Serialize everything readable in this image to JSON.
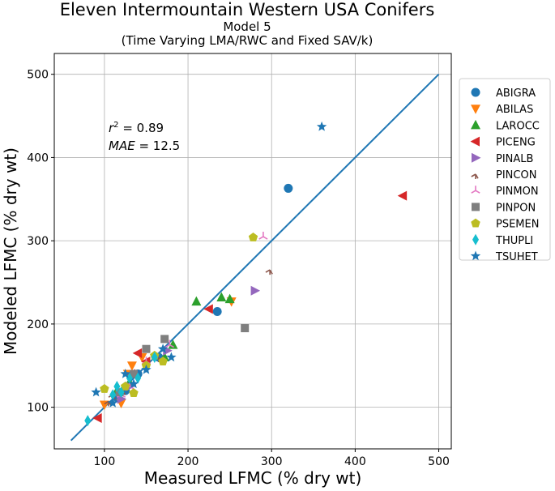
{
  "chart_data": {
    "type": "scatter",
    "title": "Eleven Intermountain Western USA Conifers",
    "subtitle_line1": "Model 5",
    "subtitle_line2": "(Time Varying LMA/RWC and Fixed SAV/k)",
    "xlabel": "Measured LFMC (% dry wt)",
    "ylabel": "Modeled LFMC (% dry wt)",
    "xlim": [
      40,
      515
    ],
    "ylim": [
      50,
      525
    ],
    "xticks": [
      100,
      200,
      300,
      400,
      500
    ],
    "yticks": [
      100,
      200,
      300,
      400,
      500
    ],
    "grid": true,
    "legend_position": "outside-right",
    "stats": {
      "r2_prefix": "r",
      "r2_sup": "2",
      "r2_value": " = 0.89",
      "mae_label": "MAE",
      "mae_value": " = 12.5"
    },
    "one_to_one_line": {
      "x": [
        60,
        500
      ],
      "y": [
        60,
        500
      ],
      "color": "#1f77b4"
    },
    "series": [
      {
        "name": "ABIGRA",
        "marker": "circle",
        "color": "#1f77b4",
        "points": [
          [
            320,
            363
          ],
          [
            235,
            215
          ],
          [
            125,
            120
          ],
          [
            115,
            112
          ],
          [
            140,
            140
          ],
          [
            165,
            160
          ]
        ]
      },
      {
        "name": "ABILAS",
        "marker": "triangle-down",
        "color": "#ff7f0e",
        "points": [
          [
            252,
            227
          ],
          [
            133,
            150
          ],
          [
            120,
            105
          ],
          [
            145,
            160
          ],
          [
            128,
            140
          ],
          [
            100,
            103
          ]
        ]
      },
      {
        "name": "LAROCC",
        "marker": "triangle-up",
        "color": "#2ca02c",
        "points": [
          [
            210,
            227
          ],
          [
            240,
            232
          ],
          [
            250,
            230
          ],
          [
            182,
            175
          ],
          [
            172,
            160
          ],
          [
            130,
            130
          ],
          [
            115,
            120
          ]
        ]
      },
      {
        "name": "PICENG",
        "marker": "triangle-left",
        "color": "#d62728",
        "points": [
          [
            457,
            354
          ],
          [
            225,
            218
          ],
          [
            140,
            165
          ],
          [
            150,
            155
          ],
          [
            92,
            87
          ],
          [
            132,
            140
          ]
        ]
      },
      {
        "name": "PINALB",
        "marker": "triangle-right",
        "color": "#9467bd",
        "points": [
          [
            280,
            240
          ],
          [
            175,
            168
          ],
          [
            130,
            125
          ],
          [
            120,
            110
          ]
        ]
      },
      {
        "name": "PINCON",
        "marker": "tri-down",
        "color": "#8c564b",
        "points": [
          [
            298,
            265
          ],
          [
            105,
            107
          ],
          [
            165,
            160
          ],
          [
            110,
            115
          ],
          [
            122,
            120
          ]
        ]
      },
      {
        "name": "PINMON",
        "marker": "tri-up",
        "color": "#e377c2",
        "points": [
          [
            290,
            305
          ],
          [
            178,
            175
          ],
          [
            130,
            125
          ],
          [
            150,
            155
          ],
          [
            120,
            115
          ]
        ]
      },
      {
        "name": "PINPON",
        "marker": "square",
        "color": "#7f7f7f",
        "points": [
          [
            268,
            195
          ],
          [
            172,
            182
          ],
          [
            150,
            170
          ],
          [
            135,
            140
          ],
          [
            118,
            118
          ]
        ]
      },
      {
        "name": "PSEMEN",
        "marker": "pentagon",
        "color": "#bcbd22",
        "points": [
          [
            278,
            304
          ],
          [
            100,
            122
          ],
          [
            135,
            117
          ],
          [
            170,
            155
          ],
          [
            160,
            162
          ],
          [
            150,
            150
          ],
          [
            125,
            125
          ]
        ]
      },
      {
        "name": "THUPLI",
        "marker": "thin-diamond",
        "color": "#17becf",
        "points": [
          [
            80,
            84
          ],
          [
            115,
            125
          ],
          [
            130,
            135
          ],
          [
            120,
            118
          ],
          [
            110,
            115
          ],
          [
            140,
            135
          ],
          [
            160,
            160
          ]
        ]
      },
      {
        "name": "TSUHET",
        "marker": "star",
        "color": "#1f77b4",
        "points": [
          [
            360,
            437
          ],
          [
            90,
            118
          ],
          [
            180,
            160
          ],
          [
            150,
            145
          ],
          [
            135,
            128
          ],
          [
            170,
            170
          ],
          [
            125,
            140
          ],
          [
            110,
            105
          ]
        ]
      }
    ]
  }
}
